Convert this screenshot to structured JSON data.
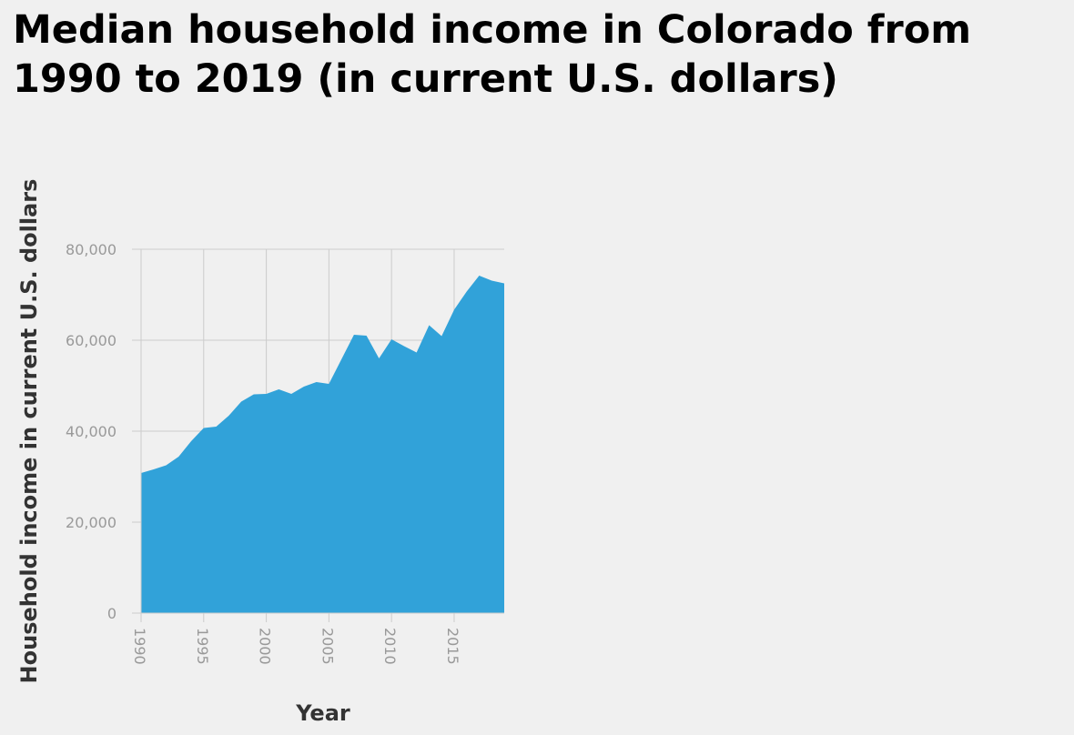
{
  "chart_data": {
    "type": "area",
    "title": "Median household income in Colorado from 1990 to 2019 (in current U.S. dollars)",
    "xlabel": "Year",
    "ylabel": "Household income in current U.S. dollars",
    "xlim": [
      1990,
      2019
    ],
    "ylim": [
      0,
      80000
    ],
    "x_ticks": [
      1990,
      1995,
      2000,
      2005,
      2010,
      2015
    ],
    "x_tick_labels": [
      "1990",
      "1995",
      "2000",
      "2005",
      "2010",
      "2015"
    ],
    "y_ticks": [
      0,
      20000,
      40000,
      60000,
      80000
    ],
    "y_tick_labels": [
      "0",
      "20,000",
      "40,000",
      "60,000",
      "80,000"
    ],
    "grid": true,
    "fill_color": "#31a2d9",
    "grid_color": "#cccccc",
    "x": [
      1990,
      1991,
      1992,
      1993,
      1994,
      1995,
      1996,
      1997,
      1998,
      1999,
      2000,
      2001,
      2002,
      2003,
      2004,
      2005,
      2006,
      2007,
      2008,
      2009,
      2010,
      2011,
      2012,
      2013,
      2014,
      2015,
      2016,
      2017,
      2018,
      2019
    ],
    "values": [
      30800,
      31600,
      32500,
      34400,
      37800,
      40700,
      41000,
      43400,
      46500,
      48100,
      48200,
      49200,
      48200,
      49800,
      50800,
      50400,
      55800,
      61200,
      61000,
      56000,
      60200,
      58700,
      57300,
      63300,
      60900,
      66700,
      70700,
      74200,
      73100,
      72500
    ]
  }
}
